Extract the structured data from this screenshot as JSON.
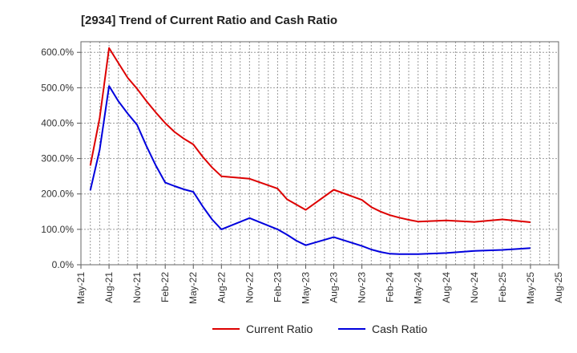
{
  "chart_data": {
    "type": "line",
    "title": "[2934]  Trend of Current Ratio and Cash Ratio",
    "xlabel": "",
    "ylabel": "",
    "ylim": [
      0,
      630
    ],
    "y_ticks": [
      0,
      100,
      200,
      300,
      400,
      500,
      600
    ],
    "y_tick_labels": [
      "0.0%",
      "100.0%",
      "200.0%",
      "300.0%",
      "400.0%",
      "500.0%",
      "600.0%"
    ],
    "x_tick_labels": [
      "May-21",
      "Aug-21",
      "Nov-21",
      "Feb-22",
      "May-22",
      "Aug-22",
      "Nov-22",
      "Feb-23",
      "May-23",
      "Aug-23",
      "Nov-23",
      "Feb-24",
      "May-24",
      "Aug-24",
      "Nov-24",
      "Feb-25",
      "May-25",
      "Aug-25"
    ],
    "x_tick_months": [
      0,
      3,
      6,
      9,
      12,
      15,
      18,
      21,
      24,
      27,
      30,
      33,
      36,
      39,
      42,
      45,
      48,
      51
    ],
    "xlim_months": [
      0,
      51
    ],
    "grid": true,
    "legend_position": "bottom",
    "series": [
      {
        "name": "Current Ratio",
        "color": "#dd0000",
        "points": [
          [
            1,
            280
          ],
          [
            2,
            415
          ],
          [
            3,
            612
          ],
          [
            4,
            570
          ],
          [
            5,
            528
          ],
          [
            6,
            497
          ],
          [
            7,
            462
          ],
          [
            8,
            430
          ],
          [
            9,
            400
          ],
          [
            10,
            375
          ],
          [
            11,
            356
          ],
          [
            12,
            340
          ],
          [
            13,
            305
          ],
          [
            14,
            275
          ],
          [
            15,
            250
          ],
          [
            18,
            243
          ],
          [
            21,
            215
          ],
          [
            22,
            185
          ],
          [
            23,
            170
          ],
          [
            24,
            155
          ],
          [
            27,
            212
          ],
          [
            30,
            183
          ],
          [
            31,
            163
          ],
          [
            32,
            150
          ],
          [
            33,
            140
          ],
          [
            34,
            133
          ],
          [
            35,
            127
          ],
          [
            36,
            122
          ],
          [
            39,
            125
          ],
          [
            42,
            121
          ],
          [
            45,
            128
          ],
          [
            48,
            120
          ]
        ]
      },
      {
        "name": "Cash Ratio",
        "color": "#0000dd",
        "points": [
          [
            1,
            210
          ],
          [
            2,
            325
          ],
          [
            3,
            505
          ],
          [
            4,
            462
          ],
          [
            5,
            427
          ],
          [
            6,
            395
          ],
          [
            7,
            335
          ],
          [
            8,
            280
          ],
          [
            9,
            232
          ],
          [
            10,
            222
          ],
          [
            11,
            213
          ],
          [
            12,
            206
          ],
          [
            13,
            165
          ],
          [
            14,
            128
          ],
          [
            15,
            100
          ],
          [
            18,
            132
          ],
          [
            21,
            100
          ],
          [
            22,
            85
          ],
          [
            23,
            68
          ],
          [
            24,
            55
          ],
          [
            27,
            78
          ],
          [
            30,
            53
          ],
          [
            31,
            43
          ],
          [
            32,
            36
          ],
          [
            33,
            31
          ],
          [
            34,
            30
          ],
          [
            35,
            30
          ],
          [
            36,
            30
          ],
          [
            39,
            33
          ],
          [
            42,
            39
          ],
          [
            45,
            42
          ],
          [
            48,
            47
          ]
        ]
      }
    ]
  }
}
